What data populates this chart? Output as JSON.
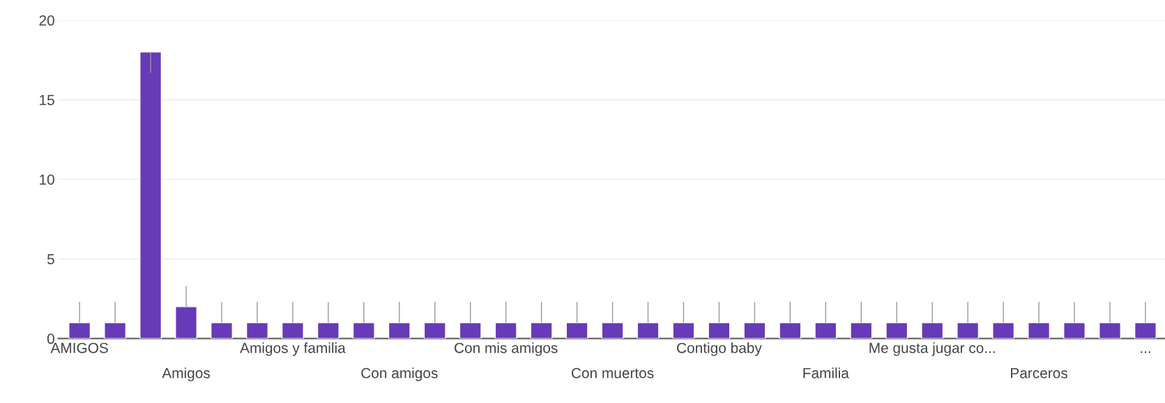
{
  "chart_data": {
    "type": "bar",
    "categories": [
      "AMIGOS",
      null,
      null,
      "Amigos",
      null,
      null,
      "Amigos y familia",
      null,
      null,
      "Con amigos",
      null,
      null,
      "Con mis amigos",
      null,
      null,
      "Con muertos",
      null,
      null,
      "Contigo baby",
      null,
      null,
      "Familia",
      null,
      null,
      "Me gusta jugar co...",
      null,
      null,
      "Parceros",
      null,
      null,
      "..."
    ],
    "values": [
      1,
      1,
      18,
      2,
      1,
      1,
      1,
      1,
      1,
      1,
      1,
      1,
      1,
      1,
      1,
      1,
      1,
      1,
      1,
      1,
      1,
      1,
      1,
      1,
      1,
      1,
      1,
      1,
      1,
      1,
      1
    ],
    "errors": [
      [
        1,
        2.3
      ],
      [
        1,
        2.3
      ],
      [
        16.7,
        18
      ],
      [
        2,
        3.3
      ],
      [
        1,
        2.3
      ],
      [
        1,
        2.3
      ],
      [
        1,
        2.3
      ],
      [
        1,
        2.3
      ],
      [
        1,
        2.3
      ],
      [
        1,
        2.3
      ],
      [
        1,
        2.3
      ],
      [
        1,
        2.3
      ],
      [
        1,
        2.3
      ],
      [
        1,
        2.3
      ],
      [
        1,
        2.3
      ],
      [
        1,
        2.3
      ],
      [
        1,
        2.3
      ],
      [
        1,
        2.3
      ],
      [
        1,
        2.3
      ],
      [
        1,
        2.3
      ],
      [
        1,
        2.3
      ],
      [
        1,
        2.3
      ],
      [
        1,
        2.3
      ],
      [
        1,
        2.3
      ],
      [
        1,
        2.3
      ],
      [
        1,
        2.3
      ],
      [
        1,
        2.3
      ],
      [
        1,
        2.3
      ],
      [
        1,
        2.3
      ],
      [
        1,
        2.3
      ],
      [
        1,
        2.3
      ]
    ],
    "color": "#673ab7",
    "ylim": [
      0,
      20
    ],
    "yticks": [
      0,
      5,
      10,
      15,
      20
    ],
    "grid": "y"
  }
}
